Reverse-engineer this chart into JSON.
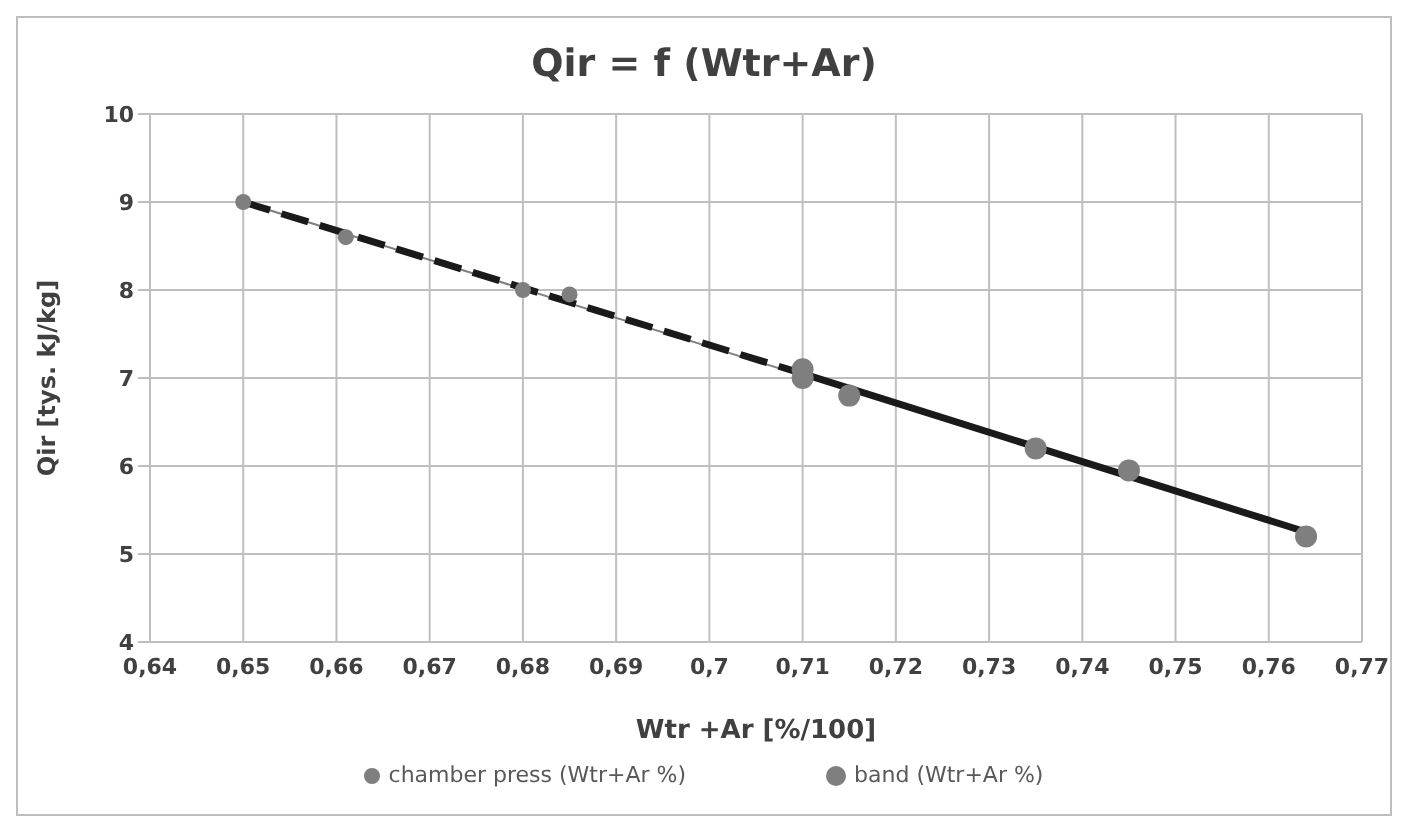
{
  "chart_data": {
    "type": "scatter",
    "title": "Qir = f (Wtr+Ar)",
    "xlabel": "Wtr +Ar [%/100]",
    "ylabel": "Qir [tys. kJ/kg]",
    "xlim": [
      0.64,
      0.77
    ],
    "xticks": [
      {
        "value": 0.64,
        "label": "0,64"
      },
      {
        "value": 0.65,
        "label": "0,65"
      },
      {
        "value": 0.66,
        "label": "0,66"
      },
      {
        "value": 0.67,
        "label": "0,67"
      },
      {
        "value": 0.68,
        "label": "0,68"
      },
      {
        "value": 0.69,
        "label": "0,69"
      },
      {
        "value": 0.7,
        "label": "0,7"
      },
      {
        "value": 0.71,
        "label": "0,71"
      },
      {
        "value": 0.72,
        "label": "0,72"
      },
      {
        "value": 0.73,
        "label": "0,73"
      },
      {
        "value": 0.74,
        "label": "0,74"
      },
      {
        "value": 0.75,
        "label": "0,75"
      },
      {
        "value": 0.76,
        "label": "0,76"
      },
      {
        "value": 0.77,
        "label": "0,77"
      }
    ],
    "ylim": [
      4,
      10
    ],
    "yticks": [
      4,
      5,
      6,
      7,
      8,
      9,
      10
    ],
    "grid": true,
    "legend": "bottom",
    "marker": "circle",
    "series": [
      {
        "name": "chamber press (Wtr+Ar %)",
        "color": "#7f7f7f",
        "type": "scatter",
        "x": [
          0.65,
          0.661,
          0.68,
          0.685
        ],
        "values": [
          9.0,
          8.6,
          8.0,
          7.95
        ]
      },
      {
        "name": "band (Wtr+Ar %)",
        "color": "#7f7f7f",
        "type": "scatter",
        "x": [
          0.71,
          0.71,
          0.715,
          0.735,
          0.745,
          0.764
        ],
        "values": [
          7.1,
          7.0,
          6.8,
          6.2,
          5.95,
          5.2
        ]
      },
      {
        "type": "line",
        "color": "#7f7f7f",
        "x": [
          0.65,
          0.764
        ],
        "values": [
          9.0,
          5.25
        ],
        "marker": "none",
        "line_style": "solid"
      },
      {
        "type": "line",
        "color": "#1a1a1a",
        "x": [
          0.65,
          0.71
        ],
        "values": [
          9.0,
          7.05
        ],
        "marker": "none",
        "line_style": "dashed"
      },
      {
        "type": "line",
        "color": "#1a1a1a",
        "x": [
          0.71,
          0.764
        ],
        "values": [
          7.05,
          5.25
        ],
        "marker": "none",
        "line_style": "solid"
      }
    ]
  }
}
